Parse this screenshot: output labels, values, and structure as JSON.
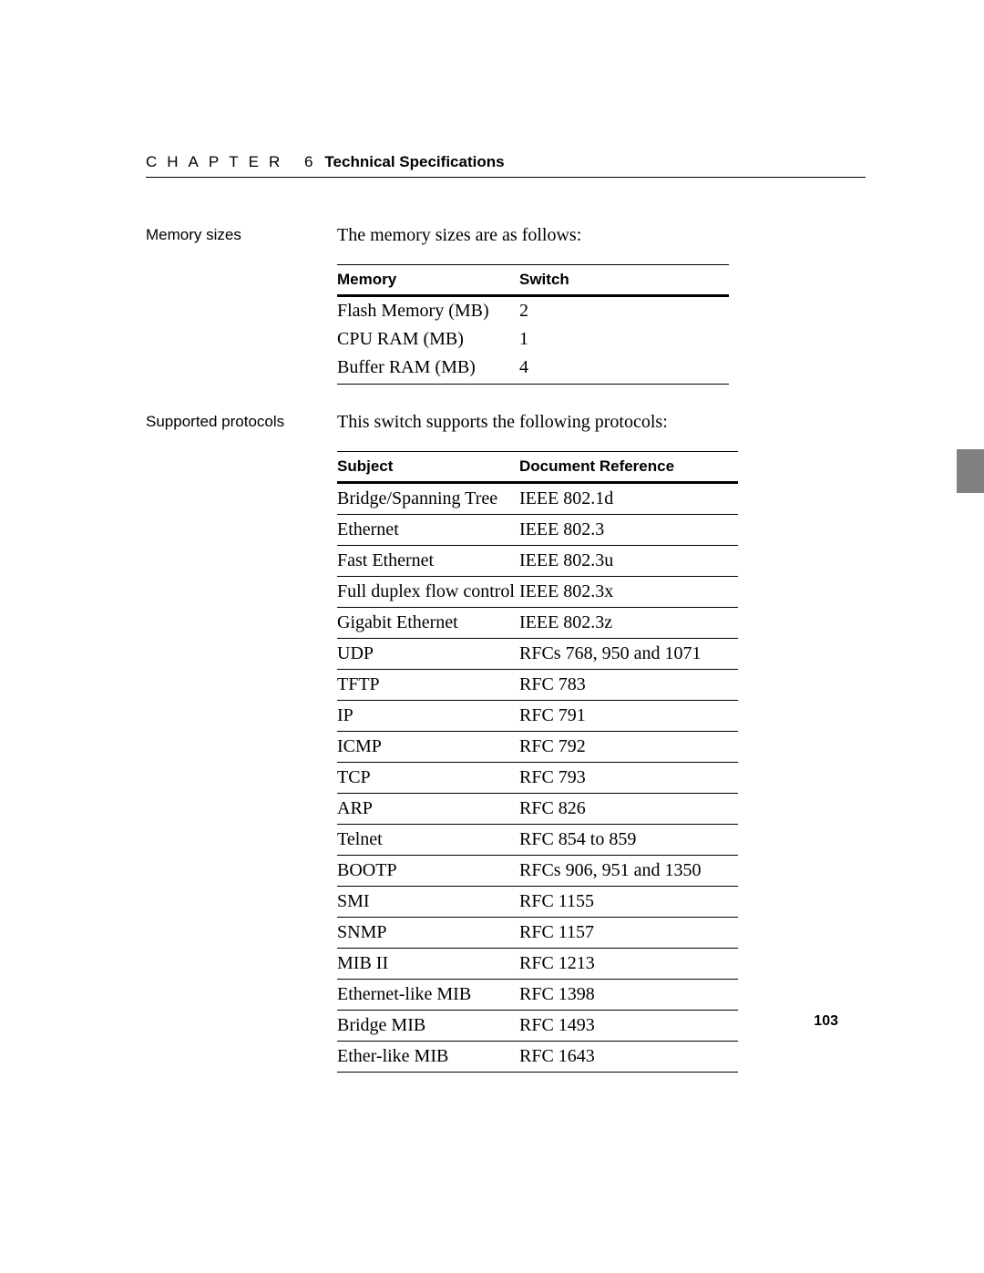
{
  "header": {
    "chapter_label": "CHAPTER 6",
    "chapter_title": "Technical Specifications"
  },
  "memory_section": {
    "label": "Memory sizes",
    "intro": "The memory sizes are as follows:",
    "table": {
      "headers": [
        "Memory",
        "Switch"
      ],
      "rows": [
        [
          "Flash Memory (MB)",
          "2"
        ],
        [
          "CPU RAM (MB)",
          "1"
        ],
        [
          "Buffer RAM (MB)",
          "4"
        ]
      ]
    }
  },
  "protocols_section": {
    "label": "Supported protocols",
    "intro": "This switch supports the following protocols:",
    "table": {
      "headers": [
        "Subject",
        "Document Reference"
      ],
      "rows": [
        [
          "Bridge/Spanning Tree",
          "IEEE 802.1d"
        ],
        [
          "Ethernet",
          "IEEE 802.3"
        ],
        [
          "Fast Ethernet",
          "IEEE 802.3u"
        ],
        [
          "Full duplex flow control",
          "IEEE 802.3x"
        ],
        [
          "Gigabit Ethernet",
          "IEEE 802.3z"
        ],
        [
          "UDP",
          "RFCs 768, 950 and 1071"
        ],
        [
          "TFTP",
          "RFC 783"
        ],
        [
          "IP",
          "RFC 791"
        ],
        [
          "ICMP",
          "RFC 792"
        ],
        [
          "TCP",
          "RFC 793"
        ],
        [
          "ARP",
          "RFC 826"
        ],
        [
          "Telnet",
          "RFC 854 to 859"
        ],
        [
          "BOOTP",
          "RFCs 906, 951 and 1350"
        ],
        [
          "SMI",
          "RFC 1155"
        ],
        [
          "SNMP",
          "RFC 1157"
        ],
        [
          "MIB II",
          "RFC 1213"
        ],
        [
          "Ethernet-like MIB",
          "RFC 1398"
        ],
        [
          "Bridge MIB",
          "RFC 1493"
        ],
        [
          "Ether-like MIB",
          "RFC 1643"
        ]
      ]
    }
  },
  "page_number": "103"
}
